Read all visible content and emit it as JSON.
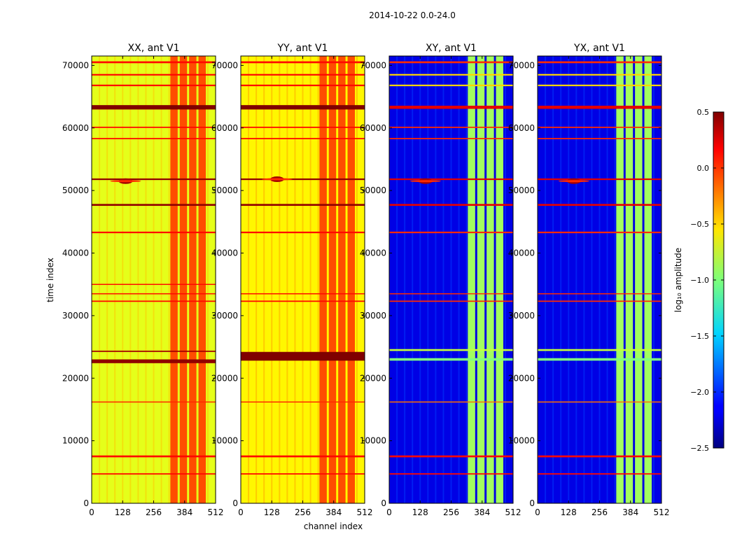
{
  "figure": {
    "suptitle": "2014-10-22 0.0-24.0"
  },
  "chart_data": [
    {
      "type": "heatmap",
      "title": "XX, ant V1",
      "xlabel": "",
      "ylabel": "time index",
      "xlim": [
        0,
        512
      ],
      "ylim": [
        0,
        71500
      ],
      "xticks": [
        0,
        128,
        256,
        384,
        512
      ],
      "yticks": [
        0,
        10000,
        20000,
        30000,
        40000,
        50000,
        60000,
        70000
      ],
      "base_level": -0.7,
      "bright_band": {
        "channels": [
          325,
          480
        ],
        "level": -0.1
      },
      "flag_rows": [
        {
          "t": 4700,
          "w": 200,
          "level": 0.1
        },
        {
          "t": 7500,
          "w": 300,
          "level": 0.1
        },
        {
          "t": 16200,
          "w": 150,
          "level": 0.0
        },
        {
          "t": 22700,
          "w": 600,
          "level": 0.45
        },
        {
          "t": 24300,
          "w": 200,
          "level": 0.4
        },
        {
          "t": 32300,
          "w": 200,
          "level": 0.1
        },
        {
          "t": 33500,
          "w": 150,
          "level": 0.1
        },
        {
          "t": 35000,
          "w": 150,
          "level": 0.1
        },
        {
          "t": 43300,
          "w": 250,
          "level": 0.1
        },
        {
          "t": 47700,
          "w": 300,
          "level": 0.45
        },
        {
          "t": 51800,
          "w": 250,
          "level": 0.45
        },
        {
          "t": 58300,
          "w": 200,
          "level": 0.1
        },
        {
          "t": 60100,
          "w": 200,
          "level": 0.1
        },
        {
          "t": 63300,
          "w": 700,
          "level": 0.5
        },
        {
          "t": 66800,
          "w": 250,
          "level": 0.1
        },
        {
          "t": 68500,
          "w": 250,
          "level": 0.1
        },
        {
          "t": 70500,
          "w": 300,
          "level": 0.1
        }
      ],
      "hotspots": [
        {
          "channel": 140,
          "t": 51500,
          "level": 0.4
        }
      ]
    },
    {
      "type": "heatmap",
      "title": "YY, ant V1",
      "xlabel": "channel index",
      "ylabel": "",
      "xlim": [
        0,
        512
      ],
      "ylim": [
        0,
        71500
      ],
      "xticks": [
        0,
        128,
        256,
        384,
        512
      ],
      "yticks": [
        0,
        10000,
        20000,
        30000,
        40000,
        50000,
        60000,
        70000
      ],
      "base_level": -0.6,
      "bright_band": {
        "channels": [
          325,
          480
        ],
        "level": -0.1
      },
      "flag_rows": [
        {
          "t": 4700,
          "w": 200,
          "level": 0.1
        },
        {
          "t": 7500,
          "w": 300,
          "level": 0.1
        },
        {
          "t": 16200,
          "w": 150,
          "level": 0.0
        },
        {
          "t": 23500,
          "w": 1400,
          "level": 0.5
        },
        {
          "t": 32300,
          "w": 200,
          "level": 0.1
        },
        {
          "t": 33500,
          "w": 150,
          "level": 0.1
        },
        {
          "t": 43300,
          "w": 250,
          "level": 0.1
        },
        {
          "t": 47700,
          "w": 300,
          "level": 0.45
        },
        {
          "t": 51800,
          "w": 250,
          "level": 0.45
        },
        {
          "t": 58300,
          "w": 200,
          "level": 0.1
        },
        {
          "t": 60100,
          "w": 200,
          "level": 0.1
        },
        {
          "t": 63300,
          "w": 700,
          "level": 0.5
        },
        {
          "t": 66800,
          "w": 250,
          "level": 0.1
        },
        {
          "t": 68500,
          "w": 250,
          "level": 0.1
        },
        {
          "t": 70500,
          "w": 300,
          "level": 0.1
        }
      ],
      "hotspots": [
        {
          "channel": 150,
          "t": 51800,
          "level": 0.4
        }
      ]
    },
    {
      "type": "heatmap",
      "title": "XY, ant V1",
      "xlabel": "",
      "ylabel": "",
      "xlim": [
        0,
        512
      ],
      "ylim": [
        0,
        71500
      ],
      "xticks": [
        0,
        128,
        256,
        384,
        512
      ],
      "yticks": [
        0,
        10000,
        20000,
        30000,
        40000,
        50000,
        60000,
        70000
      ],
      "base_level": -2.2,
      "bright_band": {
        "channels": [
          325,
          480
        ],
        "level": -0.9
      },
      "flag_rows": [
        {
          "t": 4700,
          "w": 200,
          "level": 0.1
        },
        {
          "t": 7500,
          "w": 300,
          "level": 0.1
        },
        {
          "t": 16200,
          "w": 150,
          "level": -0.2
        },
        {
          "t": 23000,
          "w": 400,
          "level": -1.0
        },
        {
          "t": 24500,
          "w": 300,
          "level": -0.8
        },
        {
          "t": 32300,
          "w": 200,
          "level": 0.0
        },
        {
          "t": 33500,
          "w": 150,
          "level": 0.0
        },
        {
          "t": 43300,
          "w": 250,
          "level": 0.0
        },
        {
          "t": 47700,
          "w": 300,
          "level": 0.2
        },
        {
          "t": 51800,
          "w": 250,
          "level": 0.2
        },
        {
          "t": 58300,
          "w": 200,
          "level": 0.0
        },
        {
          "t": 60100,
          "w": 200,
          "level": 0.0
        },
        {
          "t": 63300,
          "w": 500,
          "level": 0.2
        },
        {
          "t": 66800,
          "w": 250,
          "level": -0.5
        },
        {
          "t": 68500,
          "w": 250,
          "level": -0.5
        },
        {
          "t": 70500,
          "w": 300,
          "level": 0.0
        }
      ],
      "hotspots": [
        {
          "channel": 150,
          "t": 51500,
          "level": 0.4
        }
      ]
    },
    {
      "type": "heatmap",
      "title": "YX, ant V1",
      "xlabel": "",
      "ylabel": "",
      "xlim": [
        0,
        512
      ],
      "ylim": [
        0,
        71500
      ],
      "xticks": [
        0,
        128,
        256,
        384,
        512
      ],
      "yticks": [
        0,
        10000,
        20000,
        30000,
        40000,
        50000,
        60000,
        70000
      ],
      "base_level": -2.2,
      "bright_band": {
        "channels": [
          325,
          480
        ],
        "level": -0.9
      },
      "flag_rows": [
        {
          "t": 4700,
          "w": 200,
          "level": 0.1
        },
        {
          "t": 7500,
          "w": 300,
          "level": 0.1
        },
        {
          "t": 16200,
          "w": 150,
          "level": -0.2
        },
        {
          "t": 23000,
          "w": 400,
          "level": -1.0
        },
        {
          "t": 24500,
          "w": 300,
          "level": -0.8
        },
        {
          "t": 32300,
          "w": 200,
          "level": 0.0
        },
        {
          "t": 33500,
          "w": 150,
          "level": 0.0
        },
        {
          "t": 43300,
          "w": 250,
          "level": 0.0
        },
        {
          "t": 47700,
          "w": 300,
          "level": 0.2
        },
        {
          "t": 51800,
          "w": 250,
          "level": 0.2
        },
        {
          "t": 58300,
          "w": 200,
          "level": 0.0
        },
        {
          "t": 60100,
          "w": 200,
          "level": 0.0
        },
        {
          "t": 63300,
          "w": 500,
          "level": 0.2
        },
        {
          "t": 66800,
          "w": 250,
          "level": -0.5
        },
        {
          "t": 68500,
          "w": 250,
          "level": -0.5
        },
        {
          "t": 70500,
          "w": 300,
          "level": 0.0
        }
      ],
      "hotspots": [
        {
          "channel": 150,
          "t": 51500,
          "level": 0.4
        }
      ]
    }
  ],
  "colorbar": {
    "label": "log₁₀ amplitude",
    "range": [
      -2.5,
      0.5
    ],
    "ticks": [
      0.5,
      0.0,
      -0.5,
      -1.0,
      -1.5,
      -2.0,
      -2.5
    ],
    "tick_labels": [
      "0.5",
      "0.0",
      "−0.5",
      "−1.0",
      "−1.5",
      "−2.0",
      "−2.5"
    ],
    "colormap": "jet"
  }
}
